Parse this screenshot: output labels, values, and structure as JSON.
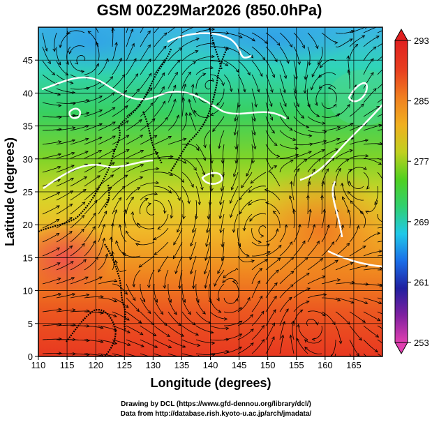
{
  "chart_data": {
    "type": "heatmap",
    "title": "GSM 00Z29Mar2026 (850.0hPa)",
    "xlabel": "Longitude (degrees)",
    "ylabel": "Latitude  (degrees)",
    "xlim": [
      110,
      170
    ],
    "ylim": [
      0,
      50
    ],
    "x_ticks": [
      110,
      115,
      120,
      125,
      130,
      135,
      140,
      145,
      150,
      155,
      160,
      165
    ],
    "y_ticks": [
      0,
      5,
      10,
      15,
      20,
      25,
      30,
      35,
      40,
      45
    ],
    "grid": true,
    "field": "temperature (K)",
    "overlays": [
      "streamlines",
      "white contours",
      "coastlines"
    ],
    "colorbar": {
      "min": 253,
      "max": 293,
      "tick_labels": [
        "293",
        "285",
        "277",
        "269",
        "261",
        "253"
      ],
      "colors": [
        "#e040b0",
        "#8020a0",
        "#2020a0",
        "#1a6ee8",
        "#20c8e8",
        "#30d070",
        "#50d020",
        "#c0d020",
        "#f0b020",
        "#f08020",
        "#e84020",
        "#e02020"
      ]
    }
  },
  "footer": {
    "line1": "Drawing by DCL (https://www.gfd-dennou.org/library/dcl/)",
    "line2": "Data from http://database.rish.kyoto-u.ac.jp/arch/jmadata/"
  }
}
